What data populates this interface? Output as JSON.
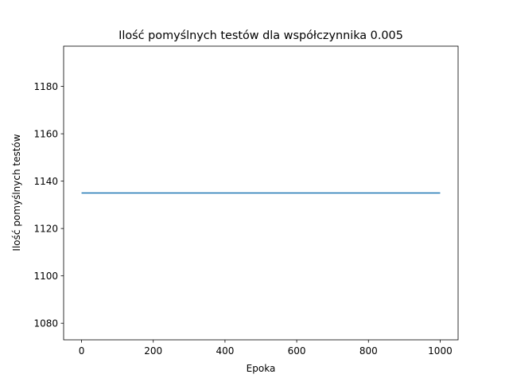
{
  "chart_data": {
    "type": "line",
    "title": "Ilość pomyślnych testów dla współczynnika 0.005",
    "xlabel": "Epoka",
    "ylabel": "Ilość pomyślnych testów",
    "xlim": [
      -50,
      1050
    ],
    "ylim": [
      1073,
      1197
    ],
    "xticks": [
      0,
      200,
      400,
      600,
      800,
      1000
    ],
    "yticks": [
      1080,
      1100,
      1120,
      1140,
      1160,
      1180
    ],
    "grid": false,
    "series": [
      {
        "color": "#1f77b4",
        "x": [
          0,
          1000
        ],
        "y": [
          1135,
          1135
        ]
      }
    ]
  }
}
